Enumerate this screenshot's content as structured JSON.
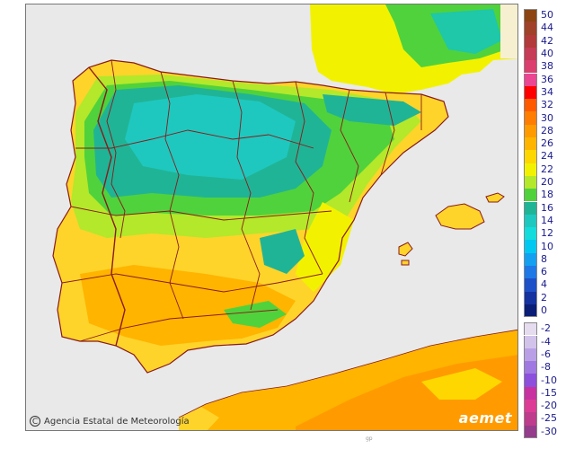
{
  "map": {
    "credit_text": "Agencia Estatal de Meteorología",
    "credit_symbol": "C",
    "logo_text": "aemet",
    "small_mark": "gp",
    "colors": {
      "sea": "#e9e9e9",
      "border": "#8a1a1a",
      "hot": "#f7b500",
      "warm": "#ffd42a",
      "yellow": "#f7f000",
      "lime": "#b4e82a",
      "green": "#45d860",
      "teal": "#1ec8a8",
      "cool": "#18b8b0",
      "hottest": "#f39a00"
    }
  },
  "legend": {
    "steps": [
      {
        "label": "50",
        "color": "#8c4512"
      },
      {
        "label": "44",
        "color": "#a0412a"
      },
      {
        "label": "42",
        "color": "#b23a3a"
      },
      {
        "label": "40",
        "color": "#c63b55"
      },
      {
        "label": "38",
        "color": "#da3f6e"
      },
      {
        "label": "36",
        "color": "#ea4691"
      },
      {
        "label": "34",
        "color": "#ff0000"
      },
      {
        "label": "32",
        "color": "#ff5a00"
      },
      {
        "label": "30",
        "color": "#ff7d00"
      },
      {
        "label": "28",
        "color": "#ff9b00"
      },
      {
        "label": "26",
        "color": "#ffb400"
      },
      {
        "label": "24",
        "color": "#ffd700"
      },
      {
        "label": "22",
        "color": "#f2f200"
      },
      {
        "label": "20",
        "color": "#b4e82a"
      },
      {
        "label": "18",
        "color": "#50d23c"
      },
      {
        "label": "16",
        "color": "#20b496"
      },
      {
        "label": "14",
        "color": "#1ec8be"
      },
      {
        "label": "12",
        "color": "#14dcdc"
      },
      {
        "label": "10",
        "color": "#00c8f0"
      },
      {
        "label": "8",
        "color": "#14a0f0"
      },
      {
        "label": "6",
        "color": "#1e78e6"
      },
      {
        "label": "4",
        "color": "#1e50c8"
      },
      {
        "label": "2",
        "color": "#1432a0"
      },
      {
        "label": "0",
        "color": "#0a1e78"
      },
      {
        "label": "-2",
        "color": "#e6dcf0"
      },
      {
        "label": "-4",
        "color": "#d2c3eb"
      },
      {
        "label": "-6",
        "color": "#b9a0e6"
      },
      {
        "label": "-8",
        "color": "#a078e1"
      },
      {
        "label": "-10",
        "color": "#8c50dc"
      },
      {
        "label": "-15",
        "color": "#c832a0"
      },
      {
        "label": "-20",
        "color": "#dc3c96"
      },
      {
        "label": "-25",
        "color": "#be3c8c"
      },
      {
        "label": "-30",
        "color": "#963c8c"
      }
    ]
  }
}
